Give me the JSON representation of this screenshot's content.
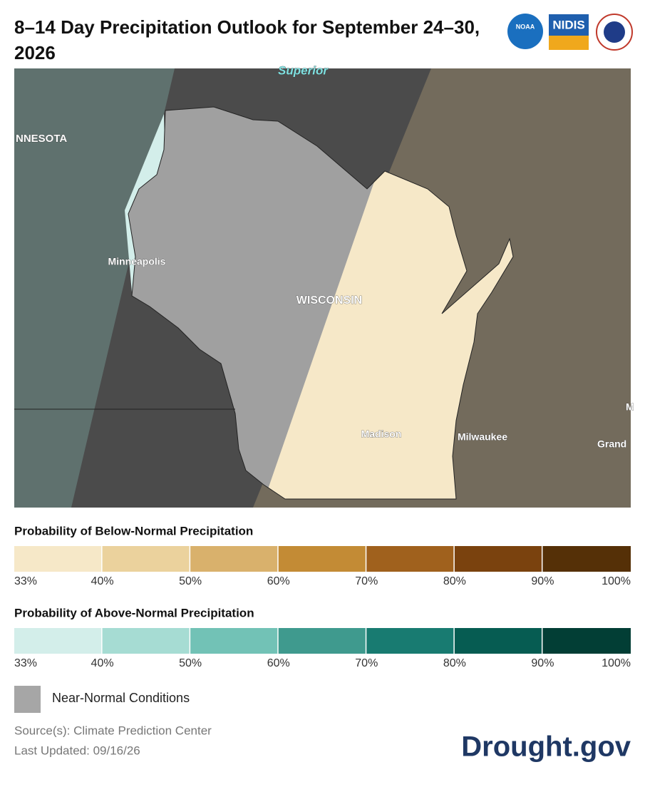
{
  "header": {
    "title": "8–14 Day Precipitation Outlook for September 24–30, 2026"
  },
  "logos": [
    "NOAA",
    "NIDIS"
  ],
  "map": {
    "labels": [
      "Superior",
      "NNESOTA",
      "Minneapolis",
      "WISCONSIN",
      "Madison",
      "Milwaukee",
      "Grand",
      "M"
    ]
  },
  "legend": {
    "below": {
      "title": "Probability of Below-Normal Precipitation",
      "colors": [
        "#f6e8c8",
        "#ebd29d",
        "#d9b16c",
        "#c38b35",
        "#a0611d",
        "#7a420e",
        "#553007"
      ],
      "ticks": [
        "33%",
        "40%",
        "50%",
        "60%",
        "70%",
        "80%",
        "90%",
        "100%"
      ]
    },
    "above": {
      "title": "Probability of Above-Normal Precipitation",
      "colors": [
        "#d3eeea",
        "#a6dcd3",
        "#72c2b6",
        "#3f9a8e",
        "#187b71",
        "#065c52",
        "#023e35"
      ],
      "ticks": [
        "33%",
        "40%",
        "50%",
        "60%",
        "70%",
        "80%",
        "90%",
        "100%"
      ]
    },
    "near_normal": {
      "label": "Near-Normal Conditions",
      "color": "#a6a6a6"
    }
  },
  "footer": {
    "source": "Source(s): Climate Prediction Center",
    "updated": "Last Updated: 09/16/26",
    "brand": "Drought.gov"
  }
}
